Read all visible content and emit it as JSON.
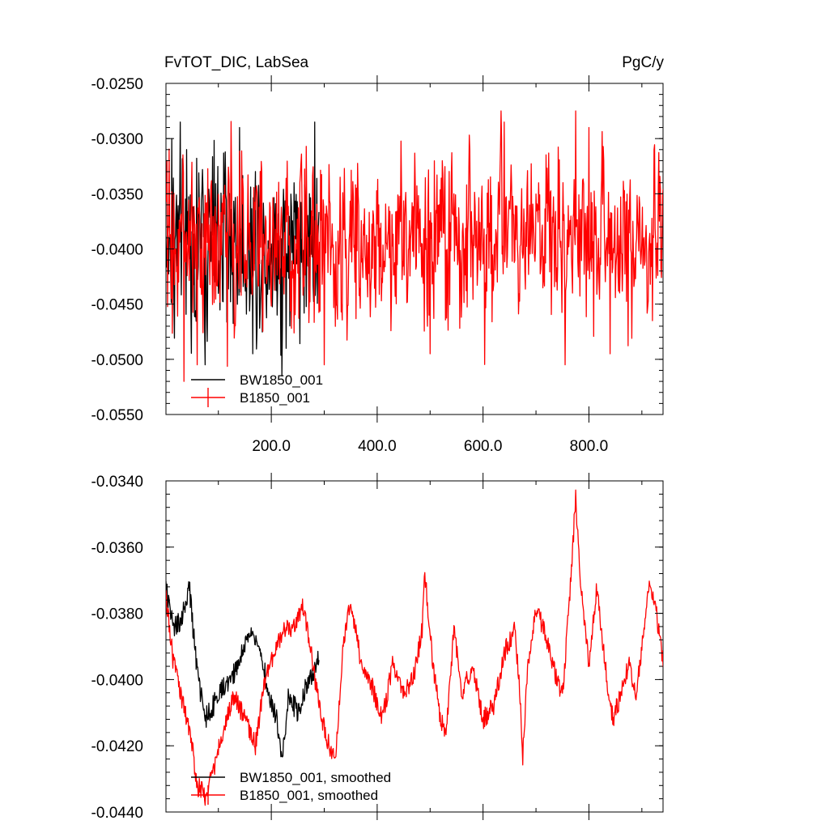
{
  "figure": {
    "title_left": "FvTOT_DIC, LabSea",
    "title_right": "PgC/y"
  },
  "chart_data": [
    {
      "type": "line",
      "title": "FvTOT_DIC, LabSea",
      "units": "PgC/y",
      "xlim": [
        1,
        940
      ],
      "ylim": [
        -0.055,
        -0.025
      ],
      "x_ticks": [
        200,
        400,
        600,
        800
      ],
      "x_tick_labels": [
        "200.0",
        "400.0",
        "600.0",
        "800.0"
      ],
      "y_ticks": [
        -0.025,
        -0.03,
        -0.035,
        -0.04,
        -0.045,
        -0.05,
        -0.055
      ],
      "y_tick_labels": [
        "-0.0250",
        "-0.0300",
        "-0.0350",
        "-0.0400",
        "-0.0450",
        "-0.0500",
        "-0.0550"
      ],
      "legend_position": "bottom-left",
      "grid": false,
      "series": [
        {
          "name": "BW1850_001",
          "color": "#000000",
          "x_range": [
            1,
            290
          ],
          "approx_mean": -0.0395,
          "approx_stddev": 0.0042,
          "approx_min": -0.0515,
          "approx_max": -0.0285,
          "keypoints": [
            [
              5,
              -0.0395
            ],
            [
              12,
              -0.03
            ],
            [
              40,
              -0.031
            ],
            [
              75,
              -0.0505
            ],
            [
              140,
              -0.029
            ],
            [
              165,
              -0.0495
            ],
            [
              220,
              -0.0515
            ],
            [
              228,
              -0.049
            ],
            [
              282,
              -0.0285
            ],
            [
              288,
              -0.0395
            ]
          ]
        },
        {
          "name": "B1850_001",
          "color": "#ff0000",
          "x_range": [
            1,
            940
          ],
          "approx_mean": -0.0392,
          "approx_stddev": 0.0038,
          "approx_min": -0.052,
          "approx_max": -0.0275,
          "keypoints": [
            [
              5,
              -0.0385
            ],
            [
              35,
              -0.052
            ],
            [
              60,
              -0.0505
            ],
            [
              300,
              -0.0505
            ],
            [
              330,
              -0.0335
            ],
            [
              500,
              -0.0495
            ],
            [
              640,
              -0.0285
            ],
            [
              755,
              -0.0505
            ],
            [
              775,
              -0.0275
            ],
            [
              800,
              -0.029
            ],
            [
              840,
              -0.0495
            ],
            [
              920,
              -0.0465
            ],
            [
              938,
              -0.0395
            ]
          ]
        }
      ]
    },
    {
      "type": "line",
      "title": "",
      "xlim": [
        1,
        940
      ],
      "ylim": [
        -0.044,
        -0.034
      ],
      "x_ticks": [
        200,
        400,
        600,
        800
      ],
      "x_tick_labels": [],
      "y_ticks": [
        -0.034,
        -0.036,
        -0.038,
        -0.04,
        -0.042,
        -0.044
      ],
      "y_tick_labels": [
        "-0.0340",
        "-0.0360",
        "-0.0380",
        "-0.0400",
        "-0.0420",
        "-0.0440"
      ],
      "legend_position": "bottom-left",
      "grid": false,
      "series": [
        {
          "name": "BW1850_001, smoothed",
          "color": "#000000",
          "x_range": [
            1,
            290
          ],
          "approx_mean": -0.0398,
          "approx_stddev": 0.0012,
          "keypoints": [
            [
              1,
              -0.0372
            ],
            [
              15,
              -0.0385
            ],
            [
              30,
              -0.0382
            ],
            [
              45,
              -0.0372
            ],
            [
              60,
              -0.0398
            ],
            [
              75,
              -0.0412
            ],
            [
              90,
              -0.0408
            ],
            [
              110,
              -0.0402
            ],
            [
              130,
              -0.0398
            ],
            [
              145,
              -0.0392
            ],
            [
              160,
              -0.0385
            ],
            [
              170,
              -0.0388
            ],
            [
              185,
              -0.0395
            ],
            [
              195,
              -0.0405
            ],
            [
              210,
              -0.0412
            ],
            [
              220,
              -0.0425
            ],
            [
              232,
              -0.0405
            ],
            [
              250,
              -0.041
            ],
            [
              265,
              -0.0402
            ],
            [
              278,
              -0.0398
            ],
            [
              290,
              -0.0392
            ]
          ]
        },
        {
          "name": "B1850_001, smoothed",
          "color": "#ff0000",
          "x_range": [
            1,
            940
          ],
          "approx_mean": -0.0394,
          "approx_stddev": 0.0011,
          "keypoints": [
            [
              1,
              -0.0375
            ],
            [
              15,
              -0.0395
            ],
            [
              30,
              -0.0405
            ],
            [
              50,
              -0.042
            ],
            [
              60,
              -0.0432
            ],
            [
              75,
              -0.0435
            ],
            [
              90,
              -0.0428
            ],
            [
              110,
              -0.0415
            ],
            [
              130,
              -0.0405
            ],
            [
              150,
              -0.0412
            ],
            [
              170,
              -0.042
            ],
            [
              190,
              -0.0398
            ],
            [
              205,
              -0.0392
            ],
            [
              225,
              -0.0385
            ],
            [
              240,
              -0.0385
            ],
            [
              260,
              -0.0378
            ],
            [
              275,
              -0.0392
            ],
            [
              290,
              -0.0408
            ],
            [
              305,
              -0.0418
            ],
            [
              320,
              -0.0425
            ],
            [
              335,
              -0.0392
            ],
            [
              345,
              -0.0378
            ],
            [
              355,
              -0.0382
            ],
            [
              370,
              -0.0395
            ],
            [
              390,
              -0.0402
            ],
            [
              410,
              -0.0412
            ],
            [
              430,
              -0.0395
            ],
            [
              450,
              -0.0405
            ],
            [
              470,
              -0.0398
            ],
            [
              485,
              -0.0385
            ],
            [
              490,
              -0.0368
            ],
            [
              505,
              -0.0395
            ],
            [
              520,
              -0.0412
            ],
            [
              530,
              -0.0418
            ],
            [
              545,
              -0.0385
            ],
            [
              560,
              -0.0405
            ],
            [
              580,
              -0.0395
            ],
            [
              600,
              -0.0412
            ],
            [
              620,
              -0.0408
            ],
            [
              640,
              -0.0392
            ],
            [
              660,
              -0.0385
            ],
            [
              670,
              -0.0405
            ],
            [
              675,
              -0.0423
            ],
            [
              685,
              -0.0395
            ],
            [
              700,
              -0.0378
            ],
            [
              715,
              -0.0385
            ],
            [
              730,
              -0.0395
            ],
            [
              750,
              -0.0405
            ],
            [
              765,
              -0.0372
            ],
            [
              775,
              -0.0345
            ],
            [
              785,
              -0.0372
            ],
            [
              800,
              -0.0395
            ],
            [
              815,
              -0.0372
            ],
            [
              830,
              -0.0395
            ],
            [
              845,
              -0.0412
            ],
            [
              860,
              -0.0405
            ],
            [
              875,
              -0.0395
            ],
            [
              890,
              -0.0405
            ],
            [
              905,
              -0.0382
            ],
            [
              915,
              -0.0372
            ],
            [
              925,
              -0.0378
            ],
            [
              935,
              -0.0388
            ],
            [
              940,
              -0.0395
            ]
          ]
        }
      ]
    }
  ]
}
